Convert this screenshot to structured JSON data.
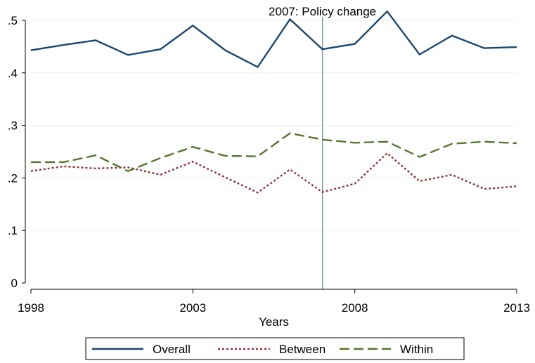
{
  "chart_data": {
    "type": "line",
    "title": "",
    "xlabel": "Years",
    "ylabel": "",
    "x": [
      1998,
      1999,
      2000,
      2001,
      2002,
      2003,
      2004,
      2005,
      2006,
      2007,
      2008,
      2009,
      2010,
      2011,
      2012,
      2013
    ],
    "xticks": [
      1998,
      2003,
      2008,
      2013
    ],
    "xtick_labels": [
      "1998",
      "2003",
      "2008",
      "2013"
    ],
    "xlim": [
      1998,
      2013
    ],
    "yticks": [
      0,
      0.1,
      0.2,
      0.3,
      0.4,
      0.5
    ],
    "ytick_labels": [
      "0",
      ".1",
      ".2",
      ".3",
      ".4",
      ".5"
    ],
    "ylim": [
      0,
      0.52
    ],
    "grid": true,
    "legend_position": "bottom",
    "series": [
      {
        "name": "Overall",
        "color": "#1a476f",
        "dash": "solid",
        "values": [
          0.443,
          0.453,
          0.462,
          0.434,
          0.445,
          0.49,
          0.443,
          0.411,
          0.502,
          0.445,
          0.455,
          0.517,
          0.435,
          0.471,
          0.447,
          0.449
        ]
      },
      {
        "name": "Between",
        "color": "#90353b",
        "dash": "dot",
        "values": [
          0.213,
          0.222,
          0.218,
          0.22,
          0.206,
          0.231,
          0.201,
          0.172,
          0.216,
          0.173,
          0.189,
          0.247,
          0.194,
          0.206,
          0.179,
          0.184
        ]
      },
      {
        "name": "Within",
        "color": "#55752f",
        "dash": "dash",
        "values": [
          0.23,
          0.23,
          0.243,
          0.213,
          0.238,
          0.259,
          0.242,
          0.241,
          0.285,
          0.273,
          0.267,
          0.269,
          0.24,
          0.265,
          0.269,
          0.266
        ]
      }
    ],
    "annotations": [
      {
        "x": 2007,
        "type": "vline",
        "label": "2007: Policy change",
        "color": "#6b8a9a"
      }
    ]
  }
}
